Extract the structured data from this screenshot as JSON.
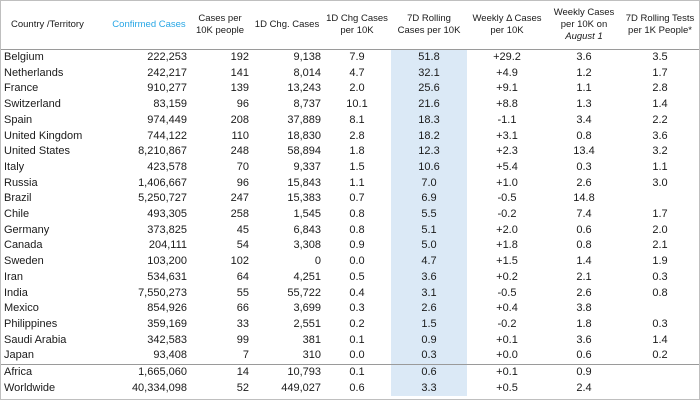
{
  "headers": {
    "country": "Country /Territory",
    "confirmed": "Confirmed Cases",
    "per10k": "Cases per 10K people",
    "chg1d": "1D Chg. Cases",
    "chg1d_per10k": "1D Chg Cases per 10K",
    "rolling7d": "7D Rolling Cases per 10K",
    "weekly_delta": "Weekly Δ Cases per 10K",
    "weekly_cases_prefix": "Weekly Cases per 10K on",
    "weekly_cases_date": "August 1",
    "tests": "7D Rolling Tests per 1K People*"
  },
  "rows": [
    {
      "country": "Belgium",
      "confirmed": "222,253",
      "per10k": "192",
      "chg1d": "9,138",
      "chg1d_per10k": "7.9",
      "rolling7d": "51.8",
      "weekly_delta": "+29.2",
      "weekly_aug1": "3.6",
      "tests": "3.5"
    },
    {
      "country": "Netherlands",
      "confirmed": "242,217",
      "per10k": "141",
      "chg1d": "8,014",
      "chg1d_per10k": "4.7",
      "rolling7d": "32.1",
      "weekly_delta": "+4.9",
      "weekly_aug1": "1.2",
      "tests": "1.7"
    },
    {
      "country": "France",
      "confirmed": "910,277",
      "per10k": "139",
      "chg1d": "13,243",
      "chg1d_per10k": "2.0",
      "rolling7d": "25.6",
      "weekly_delta": "+9.1",
      "weekly_aug1": "1.1",
      "tests": "2.8"
    },
    {
      "country": "Switzerland",
      "confirmed": "83,159",
      "per10k": "96",
      "chg1d": "8,737",
      "chg1d_per10k": "10.1",
      "rolling7d": "21.6",
      "weekly_delta": "+8.8",
      "weekly_aug1": "1.3",
      "tests": "1.4"
    },
    {
      "country": "Spain",
      "confirmed": "974,449",
      "per10k": "208",
      "chg1d": "37,889",
      "chg1d_per10k": "8.1",
      "rolling7d": "18.3",
      "weekly_delta": "-1.1",
      "weekly_aug1": "3.4",
      "tests": "2.2"
    },
    {
      "country": "United Kingdom",
      "confirmed": "744,122",
      "per10k": "110",
      "chg1d": "18,830",
      "chg1d_per10k": "2.8",
      "rolling7d": "18.2",
      "weekly_delta": "+3.1",
      "weekly_aug1": "0.8",
      "tests": "3.6"
    },
    {
      "country": "United States",
      "confirmed": "8,210,867",
      "per10k": "248",
      "chg1d": "58,894",
      "chg1d_per10k": "1.8",
      "rolling7d": "12.3",
      "weekly_delta": "+2.3",
      "weekly_aug1": "13.4",
      "tests": "3.2"
    },
    {
      "country": "Italy",
      "confirmed": "423,578",
      "per10k": "70",
      "chg1d": "9,337",
      "chg1d_per10k": "1.5",
      "rolling7d": "10.6",
      "weekly_delta": "+5.4",
      "weekly_aug1": "0.3",
      "tests": "1.1"
    },
    {
      "country": "Russia",
      "confirmed": "1,406,667",
      "per10k": "96",
      "chg1d": "15,843",
      "chg1d_per10k": "1.1",
      "rolling7d": "7.0",
      "weekly_delta": "+1.0",
      "weekly_aug1": "2.6",
      "tests": "3.0"
    },
    {
      "country": "Brazil",
      "confirmed": "5,250,727",
      "per10k": "247",
      "chg1d": "15,383",
      "chg1d_per10k": "0.7",
      "rolling7d": "6.9",
      "weekly_delta": "-0.5",
      "weekly_aug1": "14.8",
      "tests": ""
    },
    {
      "country": "Chile",
      "confirmed": "493,305",
      "per10k": "258",
      "chg1d": "1,545",
      "chg1d_per10k": "0.8",
      "rolling7d": "5.5",
      "weekly_delta": "-0.2",
      "weekly_aug1": "7.4",
      "tests": "1.7"
    },
    {
      "country": "Germany",
      "confirmed": "373,825",
      "per10k": "45",
      "chg1d": "6,843",
      "chg1d_per10k": "0.8",
      "rolling7d": "5.1",
      "weekly_delta": "+2.0",
      "weekly_aug1": "0.6",
      "tests": "2.0"
    },
    {
      "country": "Canada",
      "confirmed": "204,111",
      "per10k": "54",
      "chg1d": "3,308",
      "chg1d_per10k": "0.9",
      "rolling7d": "5.0",
      "weekly_delta": "+1.8",
      "weekly_aug1": "0.8",
      "tests": "2.1"
    },
    {
      "country": "Sweden",
      "confirmed": "103,200",
      "per10k": "102",
      "chg1d": "0",
      "chg1d_per10k": "0.0",
      "rolling7d": "4.7",
      "weekly_delta": "+1.5",
      "weekly_aug1": "1.4",
      "tests": "1.9"
    },
    {
      "country": "Iran",
      "confirmed": "534,631",
      "per10k": "64",
      "chg1d": "4,251",
      "chg1d_per10k": "0.5",
      "rolling7d": "3.6",
      "weekly_delta": "+0.2",
      "weekly_aug1": "2.1",
      "tests": "0.3"
    },
    {
      "country": "India",
      "confirmed": "7,550,273",
      "per10k": "55",
      "chg1d": "55,722",
      "chg1d_per10k": "0.4",
      "rolling7d": "3.1",
      "weekly_delta": "-0.5",
      "weekly_aug1": "2.6",
      "tests": "0.8"
    },
    {
      "country": "Mexico",
      "confirmed": "854,926",
      "per10k": "66",
      "chg1d": "3,699",
      "chg1d_per10k": "0.3",
      "rolling7d": "2.6",
      "weekly_delta": "+0.4",
      "weekly_aug1": "3.8",
      "tests": ""
    },
    {
      "country": "Philippines",
      "confirmed": "359,169",
      "per10k": "33",
      "chg1d": "2,551",
      "chg1d_per10k": "0.2",
      "rolling7d": "1.5",
      "weekly_delta": "-0.2",
      "weekly_aug1": "1.8",
      "tests": "0.3"
    },
    {
      "country": "Saudi Arabia",
      "confirmed": "342,583",
      "per10k": "99",
      "chg1d": "381",
      "chg1d_per10k": "0.1",
      "rolling7d": "0.9",
      "weekly_delta": "+0.1",
      "weekly_aug1": "3.6",
      "tests": "1.4"
    },
    {
      "country": "Japan",
      "confirmed": "93,408",
      "per10k": "7",
      "chg1d": "310",
      "chg1d_per10k": "0.0",
      "rolling7d": "0.3",
      "weekly_delta": "+0.0",
      "weekly_aug1": "0.6",
      "tests": "0.2"
    }
  ],
  "totals": [
    {
      "country": "Africa",
      "confirmed": "1,665,060",
      "per10k": "14",
      "chg1d": "10,793",
      "chg1d_per10k": "0.1",
      "rolling7d": "0.6",
      "weekly_delta": "+0.1",
      "weekly_aug1": "0.9",
      "tests": ""
    },
    {
      "country": "Worldwide",
      "confirmed": "40,334,098",
      "per10k": "52",
      "chg1d": "449,027",
      "chg1d_per10k": "0.6",
      "rolling7d": "3.3",
      "weekly_delta": "+0.5",
      "weekly_aug1": "2.4",
      "tests": ""
    }
  ],
  "colors": {
    "highlight_header": "#27a6e5",
    "shaded_column": "#dbe9f6"
  }
}
